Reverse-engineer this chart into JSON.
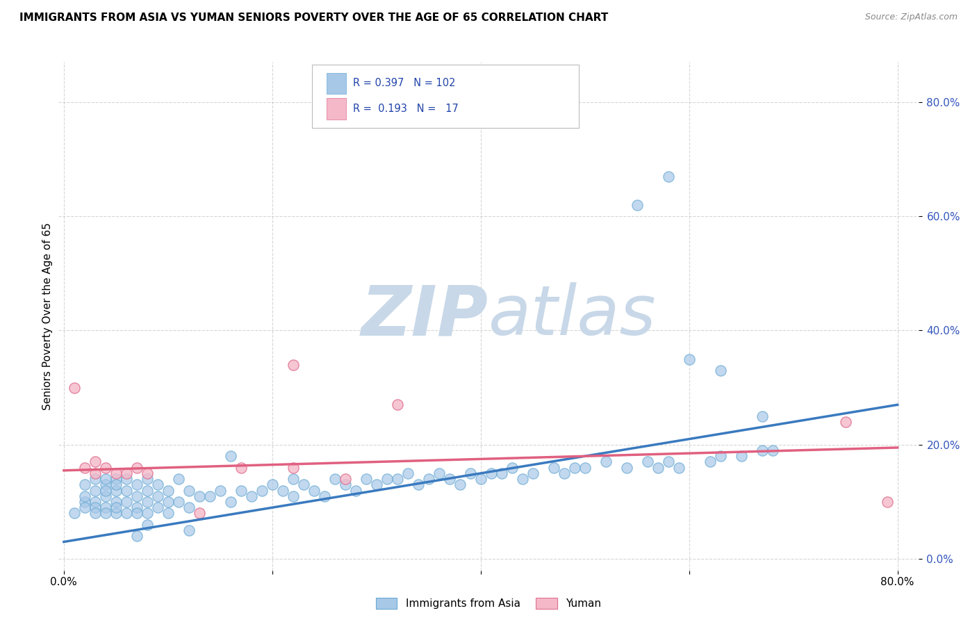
{
  "title": "IMMIGRANTS FROM ASIA VS YUMAN SENIORS POVERTY OVER THE AGE OF 65 CORRELATION CHART",
  "source": "Source: ZipAtlas.com",
  "ylabel": "Seniors Poverty Over the Age of 65",
  "blue_R": 0.397,
  "blue_N": 102,
  "pink_R": 0.193,
  "pink_N": 17,
  "blue_color": "#a8c8e8",
  "blue_edge_color": "#6aaad4",
  "pink_color": "#f4b8c8",
  "pink_edge_color": "#e07090",
  "blue_line_color": "#3a7abf",
  "pink_line_color": "#e06080",
  "watermark_zip": "ZIP",
  "watermark_atlas": "atlas",
  "watermark_color": "#c8d8e8",
  "legend_label_blue": "Immigrants from Asia",
  "legend_label_pink": "Yuman",
  "xlim": [
    0.0,
    0.8
  ],
  "ylim": [
    0.0,
    0.85
  ],
  "yticks": [
    0.0,
    0.2,
    0.4,
    0.6,
    0.8
  ],
  "ytick_labels": [
    "0.0%",
    "20.0%",
    "40.0%",
    "60.0%",
    "80.0%"
  ],
  "blue_scatter_x": [
    0.01,
    0.02,
    0.02,
    0.02,
    0.02,
    0.03,
    0.03,
    0.03,
    0.03,
    0.03,
    0.04,
    0.04,
    0.04,
    0.04,
    0.04,
    0.04,
    0.05,
    0.05,
    0.05,
    0.05,
    0.05,
    0.05,
    0.06,
    0.06,
    0.06,
    0.06,
    0.07,
    0.07,
    0.07,
    0.07,
    0.08,
    0.08,
    0.08,
    0.08,
    0.09,
    0.09,
    0.09,
    0.1,
    0.1,
    0.1,
    0.11,
    0.11,
    0.12,
    0.12,
    0.13,
    0.14,
    0.15,
    0.16,
    0.17,
    0.18,
    0.19,
    0.2,
    0.21,
    0.22,
    0.22,
    0.23,
    0.24,
    0.25,
    0.26,
    0.27,
    0.28,
    0.29,
    0.3,
    0.31,
    0.32,
    0.33,
    0.34,
    0.35,
    0.36,
    0.37,
    0.38,
    0.39,
    0.4,
    0.41,
    0.42,
    0.43,
    0.44,
    0.45,
    0.47,
    0.48,
    0.49,
    0.5,
    0.52,
    0.54,
    0.56,
    0.57,
    0.58,
    0.59,
    0.6,
    0.62,
    0.63,
    0.65,
    0.67,
    0.68,
    0.55,
    0.58,
    0.63,
    0.67,
    0.16,
    0.12,
    0.08,
    0.07
  ],
  "blue_scatter_y": [
    0.08,
    0.1,
    0.13,
    0.11,
    0.09,
    0.1,
    0.12,
    0.14,
    0.09,
    0.08,
    0.11,
    0.13,
    0.09,
    0.12,
    0.08,
    0.14,
    0.1,
    0.12,
    0.08,
    0.14,
    0.09,
    0.13,
    0.1,
    0.08,
    0.12,
    0.14,
    0.09,
    0.11,
    0.13,
    0.08,
    0.1,
    0.12,
    0.08,
    0.14,
    0.09,
    0.11,
    0.13,
    0.08,
    0.1,
    0.12,
    0.1,
    0.14,
    0.09,
    0.12,
    0.11,
    0.11,
    0.12,
    0.1,
    0.12,
    0.11,
    0.12,
    0.13,
    0.12,
    0.14,
    0.11,
    0.13,
    0.12,
    0.11,
    0.14,
    0.13,
    0.12,
    0.14,
    0.13,
    0.14,
    0.14,
    0.15,
    0.13,
    0.14,
    0.15,
    0.14,
    0.13,
    0.15,
    0.14,
    0.15,
    0.15,
    0.16,
    0.14,
    0.15,
    0.16,
    0.15,
    0.16,
    0.16,
    0.17,
    0.16,
    0.17,
    0.16,
    0.17,
    0.16,
    0.35,
    0.17,
    0.18,
    0.18,
    0.19,
    0.19,
    0.62,
    0.67,
    0.33,
    0.25,
    0.18,
    0.05,
    0.06,
    0.04
  ],
  "pink_scatter_x": [
    0.01,
    0.02,
    0.03,
    0.03,
    0.04,
    0.05,
    0.06,
    0.07,
    0.08,
    0.13,
    0.17,
    0.22,
    0.22,
    0.27,
    0.32,
    0.75,
    0.79
  ],
  "pink_scatter_y": [
    0.3,
    0.16,
    0.17,
    0.15,
    0.16,
    0.15,
    0.15,
    0.16,
    0.15,
    0.08,
    0.16,
    0.34,
    0.16,
    0.14,
    0.27,
    0.24,
    0.1
  ],
  "blue_trend_x": [
    0.0,
    0.8
  ],
  "blue_trend_y": [
    0.03,
    0.27
  ],
  "pink_trend_x": [
    0.0,
    0.8
  ],
  "pink_trend_y": [
    0.155,
    0.195
  ]
}
